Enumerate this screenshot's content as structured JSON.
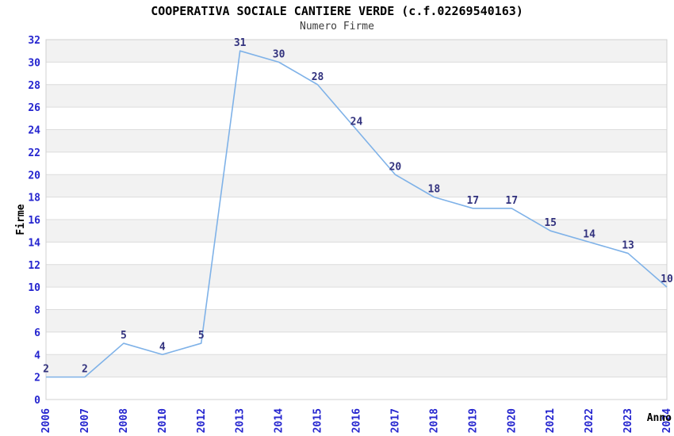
{
  "header": {
    "title": "COOPERATIVA SOCIALE CANTIERE VERDE (c.f.02269540163)",
    "subtitle": "Numero Firme"
  },
  "axes": {
    "y_label": "Firme",
    "x_label": "Anno"
  },
  "colors": {
    "line": "#7FB2E8",
    "tick_label": "#2525CF",
    "data_label": "#32327E",
    "band": "#F2F2F2",
    "grid": "#DCDCDC",
    "border": "#D0D0D0",
    "title": "#000000",
    "subtitle": "#3D3D3D",
    "axis_label": "#000000",
    "background": "#FFFFFF"
  },
  "chart_data": {
    "type": "line",
    "title": "COOPERATIVA SOCIALE CANTIERE VERDE (c.f.02269540163)",
    "subtitle": "Numero Firme",
    "xlabel": "Anno",
    "ylabel": "Firme",
    "categories": [
      "2006",
      "2007",
      "2008",
      "2010",
      "2012",
      "2013",
      "2014",
      "2015",
      "2016",
      "2017",
      "2018",
      "2019",
      "2020",
      "2021",
      "2022",
      "2023",
      "2024"
    ],
    "values": [
      2,
      2,
      5,
      4,
      5,
      31,
      30,
      28,
      24,
      20,
      18,
      17,
      17,
      15,
      14,
      13,
      10
    ],
    "ylim": [
      0,
      32
    ],
    "ytick_step": 2,
    "grid": true,
    "banded_rows": true,
    "x_tick_rotation": -90,
    "data_labels": true,
    "legend_position": "none"
  }
}
